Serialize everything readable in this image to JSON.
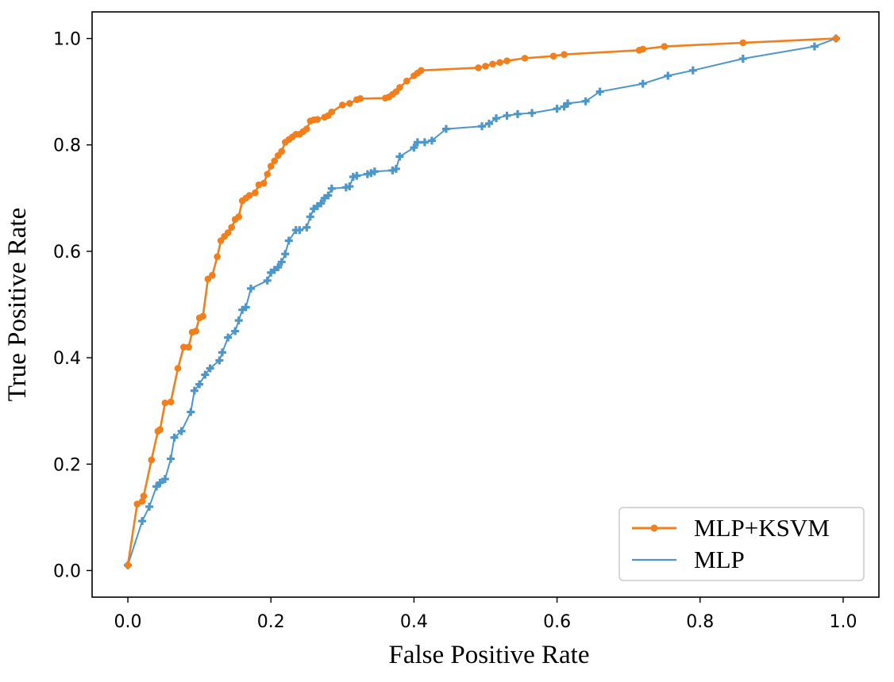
{
  "chart_data": {
    "type": "line",
    "title": "",
    "xlabel": "False Positive Rate",
    "ylabel": "True Positive Rate",
    "xlim": [
      -0.05,
      1.05
    ],
    "ylim": [
      -0.05,
      1.05
    ],
    "xticks": [
      0.0,
      0.2,
      0.4,
      0.6,
      0.8,
      1.0
    ],
    "yticks": [
      0.0,
      0.2,
      0.4,
      0.6,
      0.8,
      1.0
    ],
    "xtick_labels": [
      "0.0",
      "0.2",
      "0.4",
      "0.6",
      "0.8",
      "1.0"
    ],
    "ytick_labels": [
      "0.0",
      "0.2",
      "0.4",
      "0.6",
      "0.8",
      "1.0"
    ],
    "grid": false,
    "legend_position": "bottom-right",
    "series": [
      {
        "name": "MLP+KSVM",
        "color": "#f07f1c",
        "marker": "circle",
        "x": [
          0.0,
          0.013,
          0.02,
          0.022,
          0.033,
          0.042,
          0.045,
          0.052,
          0.06,
          0.07,
          0.078,
          0.085,
          0.09,
          0.095,
          0.1,
          0.105,
          0.112,
          0.118,
          0.125,
          0.13,
          0.135,
          0.14,
          0.145,
          0.15,
          0.155,
          0.16,
          0.165,
          0.17,
          0.178,
          0.183,
          0.19,
          0.195,
          0.2,
          0.205,
          0.21,
          0.215,
          0.22,
          0.225,
          0.23,
          0.235,
          0.24,
          0.245,
          0.25,
          0.255,
          0.26,
          0.265,
          0.275,
          0.28,
          0.285,
          0.3,
          0.31,
          0.32,
          0.325,
          0.36,
          0.365,
          0.37,
          0.375,
          0.38,
          0.39,
          0.4,
          0.405,
          0.41,
          0.49,
          0.5,
          0.51,
          0.52,
          0.53,
          0.555,
          0.595,
          0.61,
          0.715,
          0.72,
          0.75,
          0.86,
          0.99
        ],
        "y": [
          0.01,
          0.125,
          0.13,
          0.14,
          0.208,
          0.262,
          0.265,
          0.315,
          0.317,
          0.38,
          0.42,
          0.42,
          0.448,
          0.45,
          0.475,
          0.478,
          0.548,
          0.555,
          0.59,
          0.62,
          0.628,
          0.635,
          0.645,
          0.66,
          0.665,
          0.695,
          0.7,
          0.705,
          0.71,
          0.725,
          0.728,
          0.745,
          0.76,
          0.77,
          0.78,
          0.788,
          0.805,
          0.81,
          0.815,
          0.82,
          0.82,
          0.825,
          0.83,
          0.845,
          0.847,
          0.848,
          0.852,
          0.855,
          0.862,
          0.875,
          0.878,
          0.885,
          0.887,
          0.888,
          0.89,
          0.895,
          0.9,
          0.908,
          0.92,
          0.93,
          0.935,
          0.94,
          0.945,
          0.948,
          0.952,
          0.955,
          0.958,
          0.963,
          0.967,
          0.97,
          0.978,
          0.98,
          0.985,
          0.992,
          1.0
        ]
      },
      {
        "name": "MLP",
        "color": "#4c97c8",
        "marker": "plus",
        "x": [
          0.0,
          0.02,
          0.03,
          0.04,
          0.045,
          0.052,
          0.06,
          0.065,
          0.075,
          0.088,
          0.093,
          0.1,
          0.108,
          0.115,
          0.128,
          0.132,
          0.14,
          0.15,
          0.155,
          0.16,
          0.165,
          0.172,
          0.195,
          0.2,
          0.205,
          0.21,
          0.215,
          0.22,
          0.225,
          0.235,
          0.24,
          0.25,
          0.255,
          0.26,
          0.265,
          0.27,
          0.275,
          0.28,
          0.285,
          0.305,
          0.31,
          0.315,
          0.32,
          0.335,
          0.34,
          0.345,
          0.37,
          0.375,
          0.38,
          0.4,
          0.405,
          0.415,
          0.425,
          0.445,
          0.495,
          0.505,
          0.515,
          0.53,
          0.545,
          0.565,
          0.6,
          0.61,
          0.615,
          0.64,
          0.66,
          0.72,
          0.755,
          0.79,
          0.86,
          0.96,
          0.99
        ],
        "y": [
          0.01,
          0.093,
          0.12,
          0.158,
          0.165,
          0.172,
          0.21,
          0.25,
          0.262,
          0.298,
          0.338,
          0.35,
          0.368,
          0.38,
          0.395,
          0.41,
          0.438,
          0.45,
          0.47,
          0.49,
          0.495,
          0.53,
          0.545,
          0.56,
          0.565,
          0.57,
          0.58,
          0.595,
          0.62,
          0.64,
          0.64,
          0.645,
          0.665,
          0.68,
          0.685,
          0.69,
          0.7,
          0.705,
          0.718,
          0.72,
          0.722,
          0.74,
          0.742,
          0.745,
          0.747,
          0.75,
          0.752,
          0.755,
          0.778,
          0.795,
          0.805,
          0.805,
          0.808,
          0.83,
          0.835,
          0.84,
          0.85,
          0.855,
          0.858,
          0.86,
          0.868,
          0.872,
          0.878,
          0.882,
          0.9,
          0.915,
          0.93,
          0.94,
          0.962,
          0.985,
          1.0
        ]
      }
    ]
  }
}
